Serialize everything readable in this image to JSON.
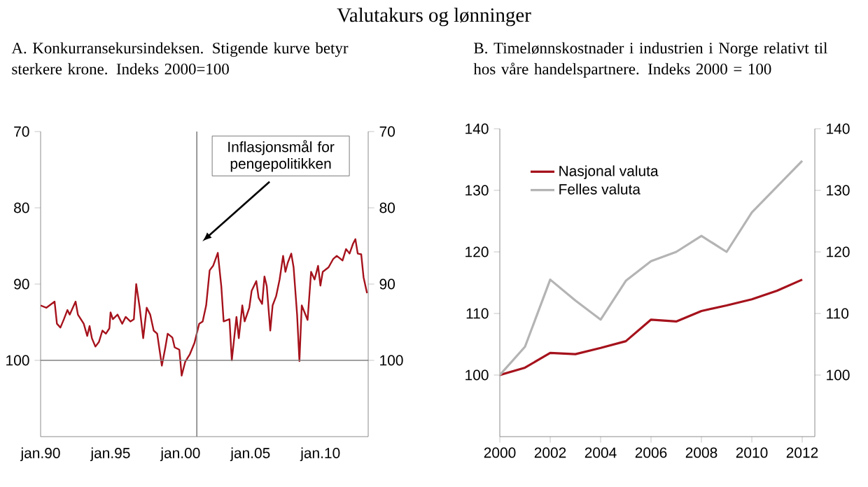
{
  "chart_data": [
    {
      "type": "line",
      "title": "Valutakurs og lønninger",
      "subtitle": "A. Konkurransekursindeksen. Stigende kurve betyr sterkere krone. Indeks 2000=100",
      "xlim": [
        "1990-01",
        "2013-06"
      ],
      "xticks": [
        {
          "value": "1990-01",
          "label": "jan.90"
        },
        {
          "value": "1995-01",
          "label": "jan.95"
        },
        {
          "value": "2000-01",
          "label": "jan.00"
        },
        {
          "value": "2005-01",
          "label": "jan.05"
        },
        {
          "value": "2010-01",
          "label": "jan.10"
        }
      ],
      "ylim": [
        110,
        70
      ],
      "yticks": [
        70,
        80,
        90,
        100
      ],
      "y2lim": [
        110,
        70
      ],
      "y2ticks": [
        70,
        80,
        90,
        100
      ],
      "ref_lines": [
        {
          "axis": "x",
          "value": "2001-03",
          "label": "Inflasjonsmål for pengepolitikken",
          "color": "#808080"
        },
        {
          "axis": "y",
          "value": 100,
          "color": "#808080"
        }
      ],
      "series": [
        {
          "color": "#a6121b",
          "x": [
            "1990-01",
            "1990-06",
            "1991-01",
            "1991-03",
            "1991-06",
            "1991-09",
            "1991-12",
            "1992-02",
            "1992-07",
            "1992-09",
            "1993-02",
            "1993-05",
            "1993-07",
            "1993-09",
            "1993-12",
            "1994-03",
            "1994-06",
            "1994-09",
            "1994-12",
            "1995-01",
            "1995-03",
            "1995-07",
            "1995-11",
            "1996-02",
            "1996-06",
            "1996-09",
            "1996-11",
            "1997-02",
            "1997-05",
            "1997-08",
            "1997-11",
            "1998-02",
            "1998-05",
            "1998-07",
            "1998-09",
            "1998-12",
            "1999-02",
            "1999-06",
            "1999-08",
            "1999-12",
            "2000-02",
            "2000-05",
            "2000-09",
            "2001-01",
            "2001-05",
            "2001-08",
            "2001-11",
            "2002-02",
            "2002-05",
            "2002-09",
            "2002-12",
            "2003-02",
            "2003-07",
            "2003-09",
            "2004-01",
            "2004-03",
            "2004-06",
            "2004-08",
            "2004-12",
            "2005-02",
            "2005-06",
            "2005-08",
            "2005-11",
            "2006-01",
            "2006-03",
            "2006-06",
            "2006-08",
            "2006-11",
            "2007-02",
            "2007-05",
            "2007-07",
            "2007-09",
            "2007-12",
            "2008-02",
            "2008-05",
            "2008-07",
            "2008-09",
            "2009-02",
            "2009-05",
            "2009-08",
            "2009-11",
            "2010-01",
            "2010-03",
            "2010-08",
            "2010-12",
            "2011-03",
            "2011-08",
            "2011-11",
            "2012-02",
            "2012-05",
            "2012-07",
            "2012-09",
            "2012-12",
            "2013-02",
            "2013-05"
          ],
          "values": [
            92.8,
            93.1,
            92.3,
            95.2,
            95.7,
            94.6,
            93.4,
            94.0,
            92.3,
            94.0,
            95.2,
            96.8,
            95.5,
            97.1,
            98.2,
            97.6,
            96.1,
            96.5,
            95.8,
            93.7,
            94.6,
            94.0,
            95.2,
            94.3,
            94.9,
            94.6,
            90.0,
            93.1,
            97.1,
            93.1,
            94.0,
            96.1,
            96.5,
            98.6,
            100.7,
            98.3,
            96.5,
            97.0,
            98.3,
            98.6,
            102.0,
            100.2,
            99.2,
            97.7,
            95.2,
            94.9,
            92.8,
            88.2,
            87.6,
            85.9,
            90.3,
            94.9,
            94.6,
            100.0,
            94.3,
            97.1,
            92.8,
            94.9,
            93.1,
            90.9,
            89.6,
            91.8,
            92.6,
            89.0,
            90.3,
            96.1,
            92.8,
            91.6,
            89.4,
            86.3,
            88.4,
            87.2,
            86.0,
            87.8,
            94.0,
            100.1,
            92.8,
            94.7,
            88.4,
            89.4,
            87.6,
            90.2,
            88.4,
            87.8,
            86.7,
            86.3,
            86.9,
            85.4,
            86.0,
            84.7,
            84.1,
            86.0,
            86.1,
            89.1,
            91.2
          ]
        }
      ]
    },
    {
      "type": "line",
      "subtitle": "B. Timelønnskostnader i industrien i Norge relativt til hos våre handelspartnere. Indeks 2000 = 100",
      "xlim": [
        2000,
        2012.5
      ],
      "xticks": [
        2000,
        2002,
        2004,
        2006,
        2008,
        2010,
        2012
      ],
      "ylim": [
        90,
        140
      ],
      "yticks": [
        100,
        110,
        120,
        130,
        140
      ],
      "y2lim": [
        90,
        140
      ],
      "y2ticks": [
        100,
        110,
        120,
        130,
        140
      ],
      "legend": "top left",
      "x": [
        2000,
        2001,
        2002,
        2003,
        2004,
        2005,
        2006,
        2007,
        2008,
        2009,
        2010,
        2011,
        2012
      ],
      "series": [
        {
          "name": "Nasjonal valuta",
          "color": "#a6121b",
          "values": [
            100,
            101.2,
            103.6,
            103.4,
            104.4,
            105.5,
            109.0,
            108.7,
            110.4,
            111.3,
            112.3,
            113.7,
            115.5
          ]
        },
        {
          "name": "Felles valuta",
          "color": "#b4b4b4",
          "values": [
            100,
            104.6,
            115.5,
            112.1,
            109.0,
            115.3,
            118.5,
            120.0,
            122.6,
            120.0,
            126.4,
            130.6,
            134.8
          ]
        }
      ]
    }
  ]
}
